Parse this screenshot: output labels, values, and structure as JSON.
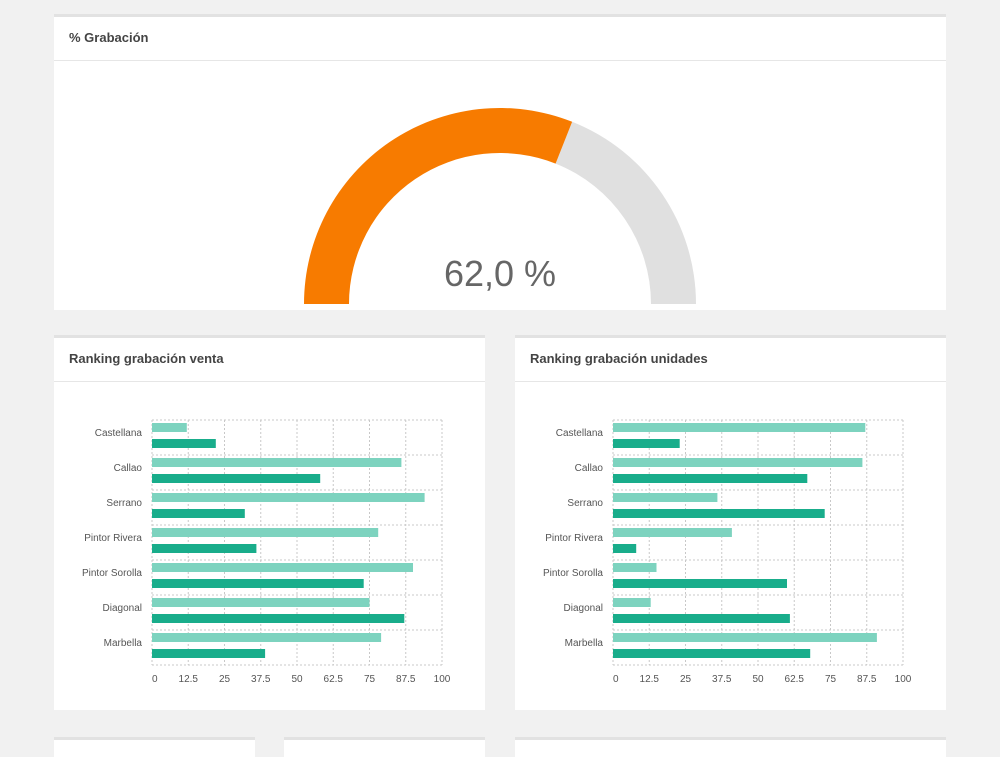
{
  "colors": {
    "gauge_fill": "#f77b00",
    "gauge_track": "#e0e0e0",
    "series_light": "#7dd3bf",
    "series_dark": "#19ad8b",
    "grid": "#c8c8c8"
  },
  "chart_data": [
    {
      "type": "gauge",
      "title": "% Grabación",
      "value": 62.0,
      "min": 0,
      "max": 100,
      "value_label": "62,0 %"
    },
    {
      "type": "bar",
      "orientation": "horizontal",
      "title": "Ranking grabación venta",
      "categories": [
        "Castellana",
        "Callao",
        "Serrano",
        "Pintor Rivera",
        "Pintor Sorolla",
        "Diagonal",
        "Marbella"
      ],
      "series": [
        {
          "values": [
            12,
            86,
            94,
            78,
            90,
            75,
            79
          ]
        },
        {
          "values": [
            22,
            58,
            32,
            36,
            73,
            87,
            39
          ]
        }
      ],
      "xlim": [
        0,
        100
      ],
      "xticks": [
        "0",
        "12.5",
        "25",
        "37.5",
        "50",
        "62.5",
        "75",
        "87.5",
        "100"
      ],
      "grid": true
    },
    {
      "type": "bar",
      "orientation": "horizontal",
      "title": "Ranking grabación unidades",
      "categories": [
        "Castellana",
        "Callao",
        "Serrano",
        "Pintor Rivera",
        "Pintor Sorolla",
        "Diagonal",
        "Marbella"
      ],
      "series": [
        {
          "values": [
            87,
            86,
            36,
            41,
            15,
            13,
            91
          ]
        },
        {
          "values": [
            23,
            67,
            73,
            8,
            60,
            61,
            68
          ]
        }
      ],
      "xlim": [
        0,
        100
      ],
      "xticks": [
        "0",
        "12.5",
        "25",
        "37.5",
        "50",
        "62.5",
        "75",
        "87.5",
        "100"
      ],
      "grid": true
    }
  ]
}
